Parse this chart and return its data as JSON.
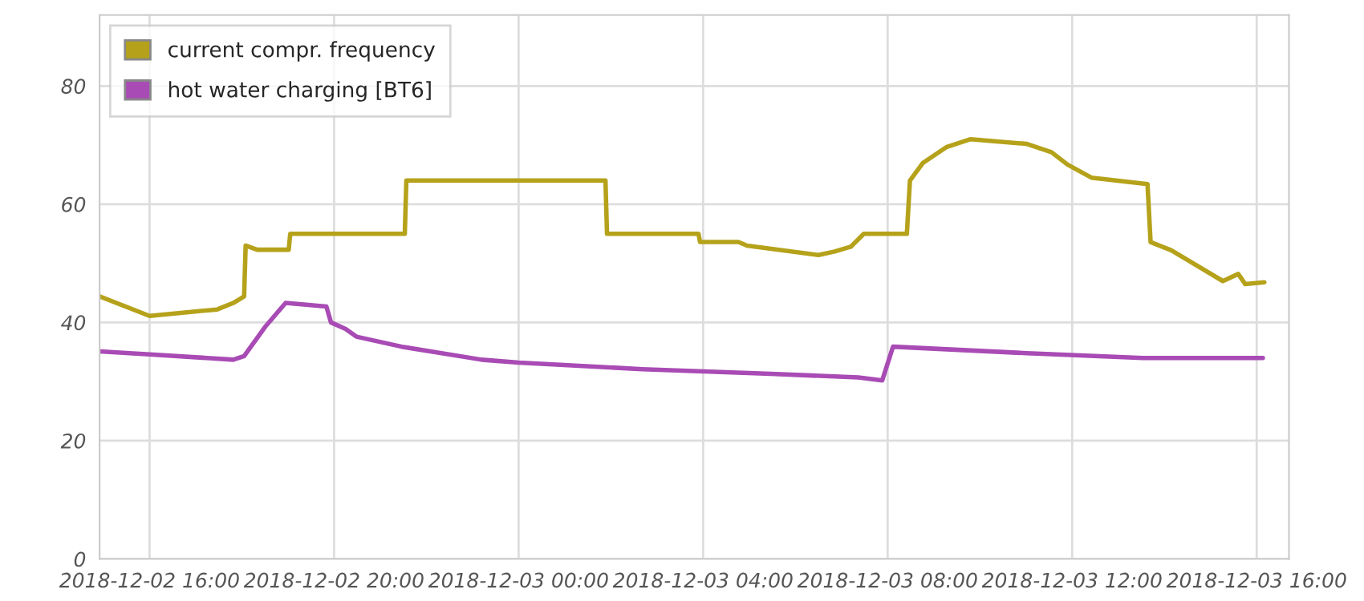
{
  "chart_data": {
    "type": "line",
    "xlim": [
      "2018-12-02T14:55",
      "2018-12-03T16:42"
    ],
    "xticks": [
      {
        "value": "2018-12-02T16:00",
        "label": "2018-12-02 16:00"
      },
      {
        "value": "2018-12-02T20:00",
        "label": "2018-12-02 20:00"
      },
      {
        "value": "2018-12-03T00:00",
        "label": "2018-12-03 00:00"
      },
      {
        "value": "2018-12-03T04:00",
        "label": "2018-12-03 04:00"
      },
      {
        "value": "2018-12-03T08:00",
        "label": "2018-12-03 08:00"
      },
      {
        "value": "2018-12-03T12:00",
        "label": "2018-12-03 12:00"
      },
      {
        "value": "2018-12-03T16:00",
        "label": "2018-12-03 16:00"
      }
    ],
    "ylim": [
      0,
      92
    ],
    "yticks": [
      0,
      20,
      40,
      60,
      80
    ],
    "grid": true,
    "legend": "top left",
    "marker": "none",
    "line_style": "solid",
    "series": [
      {
        "name": "current compr. frequency",
        "color": "#b5a21a",
        "x": [
          "2018-12-02T14:55",
          "2018-12-02T16:00",
          "2018-12-02T17:28",
          "2018-12-02T17:49",
          "2018-12-02T18:03",
          "2018-12-02T18:05",
          "2018-12-02T18:20",
          "2018-12-02T19:01",
          "2018-12-02T19:03",
          "2018-12-02T21:32",
          "2018-12-02T21:34",
          "2018-12-03T01:53",
          "2018-12-03T01:55",
          "2018-12-03T03:54",
          "2018-12-03T03:56",
          "2018-12-03T04:46",
          "2018-12-03T04:57",
          "2018-12-03T06:30",
          "2018-12-03T06:51",
          "2018-12-03T07:12",
          "2018-12-03T07:29",
          "2018-12-03T08:25",
          "2018-12-03T08:29",
          "2018-12-03T08:46",
          "2018-12-03T09:17",
          "2018-12-03T09:48",
          "2018-12-03T11:01",
          "2018-12-03T11:33",
          "2018-12-03T11:54",
          "2018-12-03T12:25",
          "2018-12-03T13:38",
          "2018-12-03T13:42",
          "2018-12-03T14:09",
          "2018-12-03T15:16",
          "2018-12-03T15:36",
          "2018-12-03T15:45",
          "2018-12-03T16:10"
        ],
        "values": [
          44.4,
          41.1,
          42.2,
          43.3,
          44.4,
          53,
          52.3,
          52.3,
          55,
          55,
          64,
          64,
          55,
          55,
          53.6,
          53.6,
          53,
          51.4,
          52,
          52.8,
          55,
          55,
          64,
          67,
          69.7,
          71,
          70.2,
          68.8,
          66.7,
          64.5,
          63.4,
          53.6,
          52.2,
          47,
          48.2,
          46.5,
          46.8
        ]
      },
      {
        "name": "hot water charging [BT6]",
        "color": "#a94bb5",
        "x": [
          "2018-12-02T14:55",
          "2018-12-02T16:00",
          "2018-12-02T17:49",
          "2018-12-02T18:03",
          "2018-12-02T18:30",
          "2018-12-02T18:57",
          "2018-12-02T19:50",
          "2018-12-02T19:56",
          "2018-12-02T20:15",
          "2018-12-02T20:29",
          "2018-12-02T21:28",
          "2018-12-02T23:12",
          "2018-12-03T00:00",
          "2018-12-03T02:41",
          "2018-12-03T05:28",
          "2018-12-03T07:22",
          "2018-12-03T07:53",
          "2018-12-03T08:07",
          "2018-12-03T11:01",
          "2018-12-03T13:32",
          "2018-12-03T16:08"
        ],
        "values": [
          35.1,
          34.6,
          33.7,
          34.3,
          39.2,
          43.3,
          42.7,
          40,
          38.9,
          37.6,
          35.9,
          33.7,
          33.2,
          32.1,
          31.3,
          30.7,
          30.2,
          35.9,
          34.8,
          34,
          34
        ]
      }
    ]
  }
}
